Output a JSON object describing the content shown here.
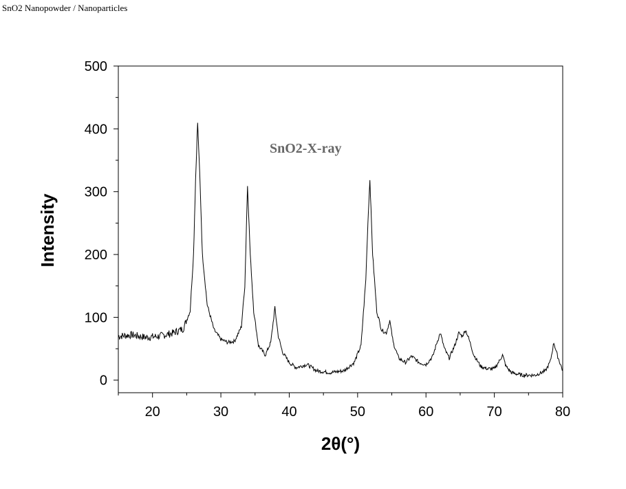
{
  "page": {
    "title": "SnO2 Nanopowder / Nanoparticles"
  },
  "chart_data": {
    "type": "line",
    "title": "",
    "annotation": "SnO2-X-ray",
    "xlabel": "2θ(°)",
    "ylabel": "Intensity",
    "xlim": [
      15,
      80
    ],
    "ylim": [
      -20,
      500
    ],
    "xticks": [
      20,
      30,
      40,
      50,
      60,
      70,
      80
    ],
    "yticks": [
      0,
      100,
      200,
      300,
      400,
      500
    ],
    "grid": false,
    "line_color": "#000000",
    "series": [
      {
        "x": [
          15,
          17,
          19,
          21,
          23,
          24.5,
          25.5,
          26,
          26.3,
          26.6,
          26.9,
          27.3,
          28,
          29,
          30,
          31,
          32,
          33,
          33.5,
          33.9,
          34.3,
          34.8,
          35.5,
          36.5,
          37.3,
          37.9,
          38.4,
          39,
          40,
          41,
          42.6,
          44,
          46,
          48,
          49.5,
          50.5,
          51.2,
          51.5,
          51.8,
          52.2,
          52.8,
          53.5,
          54.2,
          54.7,
          55.2,
          56,
          57,
          57.9,
          59,
          60,
          61,
          61.6,
          62.1,
          62.7,
          63.4,
          64.2,
          64.8,
          65.3,
          65.8,
          66.3,
          67,
          68,
          69,
          70,
          70.7,
          71.2,
          71.7,
          72.5,
          74,
          76,
          77.5,
          78.2,
          78.7,
          79.2,
          80
        ],
        "y": [
          70,
          72,
          68,
          70,
          75,
          82,
          110,
          200,
          320,
          410,
          330,
          200,
          120,
          80,
          65,
          60,
          62,
          85,
          150,
          310,
          200,
          110,
          55,
          40,
          60,
          115,
          70,
          45,
          28,
          20,
          25,
          15,
          12,
          15,
          28,
          55,
          160,
          250,
          320,
          200,
          110,
          80,
          75,
          95,
          60,
          35,
          28,
          38,
          28,
          25,
          38,
          60,
          75,
          50,
          35,
          55,
          75,
          70,
          80,
          65,
          40,
          22,
          18,
          18,
          30,
          40,
          22,
          12,
          8,
          8,
          15,
          30,
          60,
          40,
          15
        ]
      }
    ]
  }
}
